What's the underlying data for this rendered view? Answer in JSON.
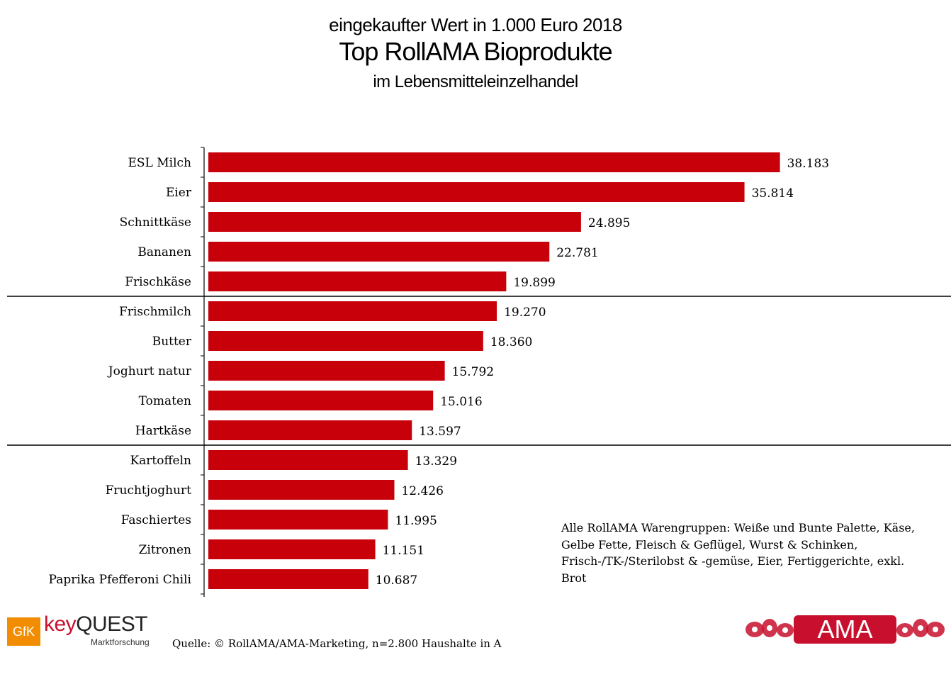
{
  "title": {
    "pre": "eingekaufter Wert in 1.000 Euro 2018",
    "main": "Top RollAMA Bioprodukte",
    "sub": "im Lebensmitteleinzelhandel"
  },
  "chart_data": {
    "type": "bar",
    "orientation": "horizontal",
    "title": "Top RollAMA Bioprodukte",
    "unit": "1.000 Euro",
    "categories": [
      "ESL Milch",
      "Eier",
      "Schnittkäse",
      "Bananen",
      "Frischkäse",
      "Frischmilch",
      "Butter",
      "Joghurt natur",
      "Tomaten",
      "Hartkäse",
      "Kartoffeln",
      "Fruchtjoghurt",
      "Faschiertes",
      "Zitronen",
      "Paprika Pfefferoni Chili"
    ],
    "values": [
      38183,
      35814,
      24895,
      22781,
      19899,
      19270,
      18360,
      15792,
      15016,
      13597,
      13329,
      12426,
      11995,
      11151,
      10687
    ],
    "value_labels": [
      "38.183",
      "35.814",
      "24.895",
      "22.781",
      "19.899",
      "19.270",
      "18.360",
      "15.792",
      "15.016",
      "13.597",
      "13.329",
      "12.426",
      "11.995",
      "11.151",
      "10.687"
    ],
    "group_separators_after_index": [
      4,
      9
    ],
    "bar_color": "#c8000a",
    "xlim": [
      0,
      40000
    ]
  },
  "note": "Alle RollAMA Warengruppen: Weiße und Bunte Palette, Käse, Gelbe Fette, Fleisch & Geflügel, Wurst & Schinken, Frisch-/TK-/Sterilobst & -gemüse,  Eier,  Fertiggerichte, exkl. Brot",
  "source": "Quelle: © RollAMA/AMA-Marketing, n=2.800 Haushalte in A",
  "logos": {
    "gfk": "GfK",
    "keyquest_key": "key",
    "keyquest_quest": "QUEST",
    "keyquest_sub": "Marktforschung",
    "ama": "AMA",
    "ama_color": "#c8102e"
  }
}
